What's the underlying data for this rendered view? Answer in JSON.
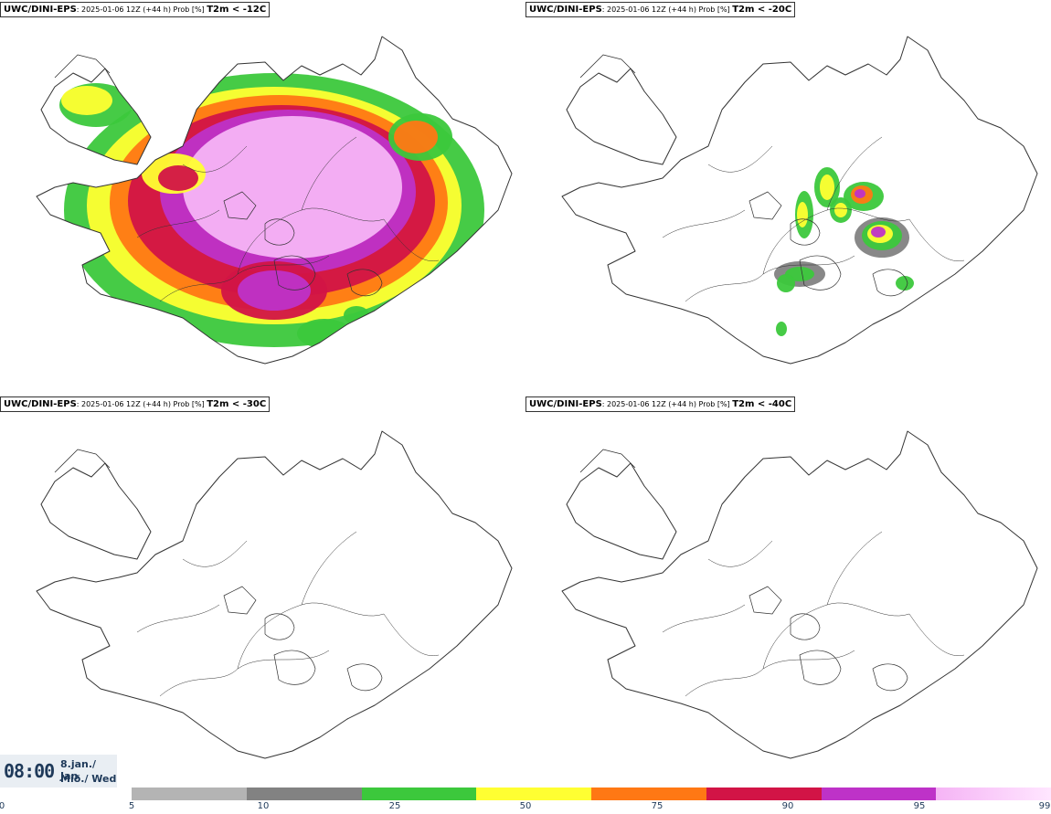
{
  "panels": [
    {
      "model": "UWC/DINI-EPS",
      "meta": ": 2025-01-06 12Z (+44 h) Prob [%] ",
      "threshold": "T2m < -12C",
      "coverage": "high"
    },
    {
      "model": "UWC/DINI-EPS",
      "meta": ": 2025-01-06 12Z (+44 h) Prob [%] ",
      "threshold": "T2m < -20C",
      "coverage": "medium"
    },
    {
      "model": "UWC/DINI-EPS",
      "meta": ": 2025-01-06 12Z (+44 h) Prob [%] ",
      "threshold": "T2m < -30C",
      "coverage": "none"
    },
    {
      "model": "UWC/DINI-EPS",
      "meta": ": 2025-01-06 12Z (+44 h) Prob [%] ",
      "threshold": "T2m < -40C",
      "coverage": "none"
    }
  ],
  "valid_time": {
    "time": "08:00",
    "date": "8.jan./ Jan",
    "weekday": "Mið./ Wed"
  },
  "colorbar": {
    "ticks": [
      "0",
      "5",
      "10",
      "25",
      "50",
      "75",
      "90",
      "95",
      "99"
    ],
    "colors": [
      "#ffffff",
      "#b4b4b4",
      "#828282",
      "#3cc83c",
      "#ffff32",
      "#ff7814",
      "#d21446",
      "#be32c8",
      "#f5b4f5"
    ]
  }
}
